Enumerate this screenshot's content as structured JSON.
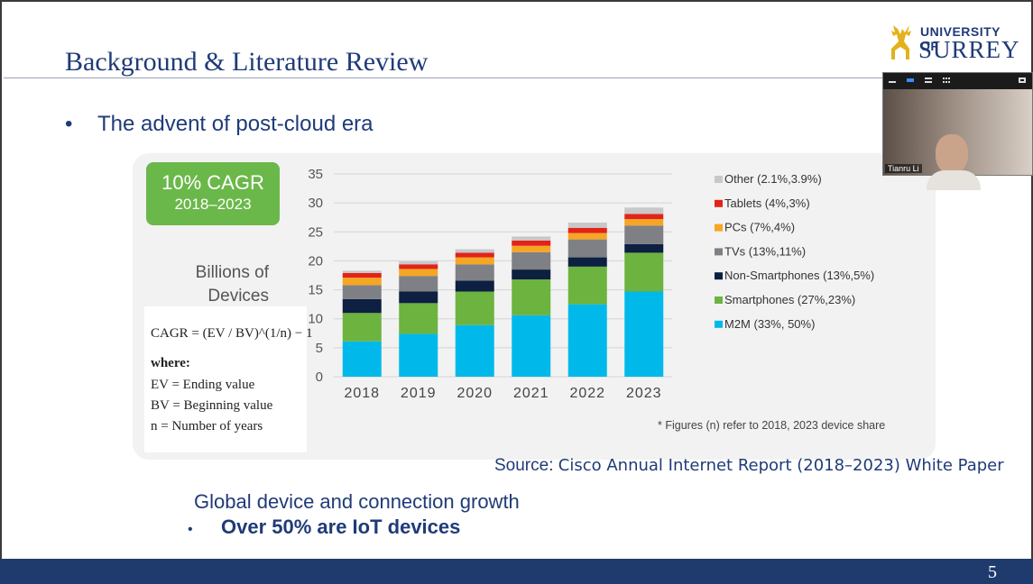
{
  "slide": {
    "title": "Background & Literature Review",
    "bullet_top": "The advent of post-cloud era",
    "bullet_glyph": "•",
    "caption": "Global device and connection growth",
    "bullet_bold": "Over 50% are IoT  devices",
    "source_label": "Source:",
    "source_text": "Cisco Annual Internet Report (2018–2023) White Paper",
    "page_number": "5"
  },
  "logo": {
    "line1": "UNIVERSITY OF",
    "line2": "SURREY"
  },
  "video": {
    "participant_name": "Tianru Li"
  },
  "callout": {
    "cagr_main": "10% CAGR",
    "cagr_years": "2018–2023",
    "units_line1": "Billions of",
    "units_line2": "Devices"
  },
  "formula": {
    "equation": "CAGR = (EV / BV)^(1/n) − 1",
    "where": "where:",
    "ev_def": "EV = Ending value",
    "bv_def": "BV = Beginning value",
    "n_def": "n = Number of years"
  },
  "footnote": "* Figures (n) refer to 2018, 2023 device share",
  "chart_data": {
    "type": "bar",
    "stacked": true,
    "categories": [
      "2018",
      "2019",
      "2020",
      "2021",
      "2022",
      "2023"
    ],
    "ylim": [
      0,
      35
    ],
    "yticks": [
      0,
      5,
      10,
      15,
      20,
      25,
      30,
      35
    ],
    "xlabel": "",
    "ylabel": "",
    "grid": true,
    "legend_position": "right",
    "series": [
      {
        "name": "M2M (33%, 50%)",
        "color": "#00b9ea",
        "values": [
          6.1,
          7.4,
          8.9,
          10.6,
          12.5,
          14.7
        ]
      },
      {
        "name": "Smartphones (27%,23%)",
        "color": "#6db33f",
        "values": [
          4.9,
          5.3,
          5.8,
          6.2,
          6.5,
          6.7
        ]
      },
      {
        "name": "Non-Smartphones (13%,5%)",
        "color": "#0d2041",
        "values": [
          2.4,
          2.0,
          1.9,
          1.7,
          1.6,
          1.5
        ]
      },
      {
        "name": "TVs (13%,11%)",
        "color": "#7f8085",
        "values": [
          2.4,
          2.7,
          2.8,
          3.0,
          3.1,
          3.2
        ]
      },
      {
        "name": "PCs (7%,4%)",
        "color": "#f5a623",
        "values": [
          1.3,
          1.2,
          1.2,
          1.1,
          1.1,
          1.1
        ]
      },
      {
        "name": "Tablets (4%,3%)",
        "color": "#e2231a",
        "values": [
          0.8,
          0.8,
          0.8,
          0.9,
          0.9,
          0.9
        ]
      },
      {
        "name": "Other (2.1%,3.9%)",
        "color": "#c8c8c8",
        "values": [
          0.4,
          0.5,
          0.6,
          0.7,
          0.9,
          1.1
        ]
      }
    ]
  }
}
